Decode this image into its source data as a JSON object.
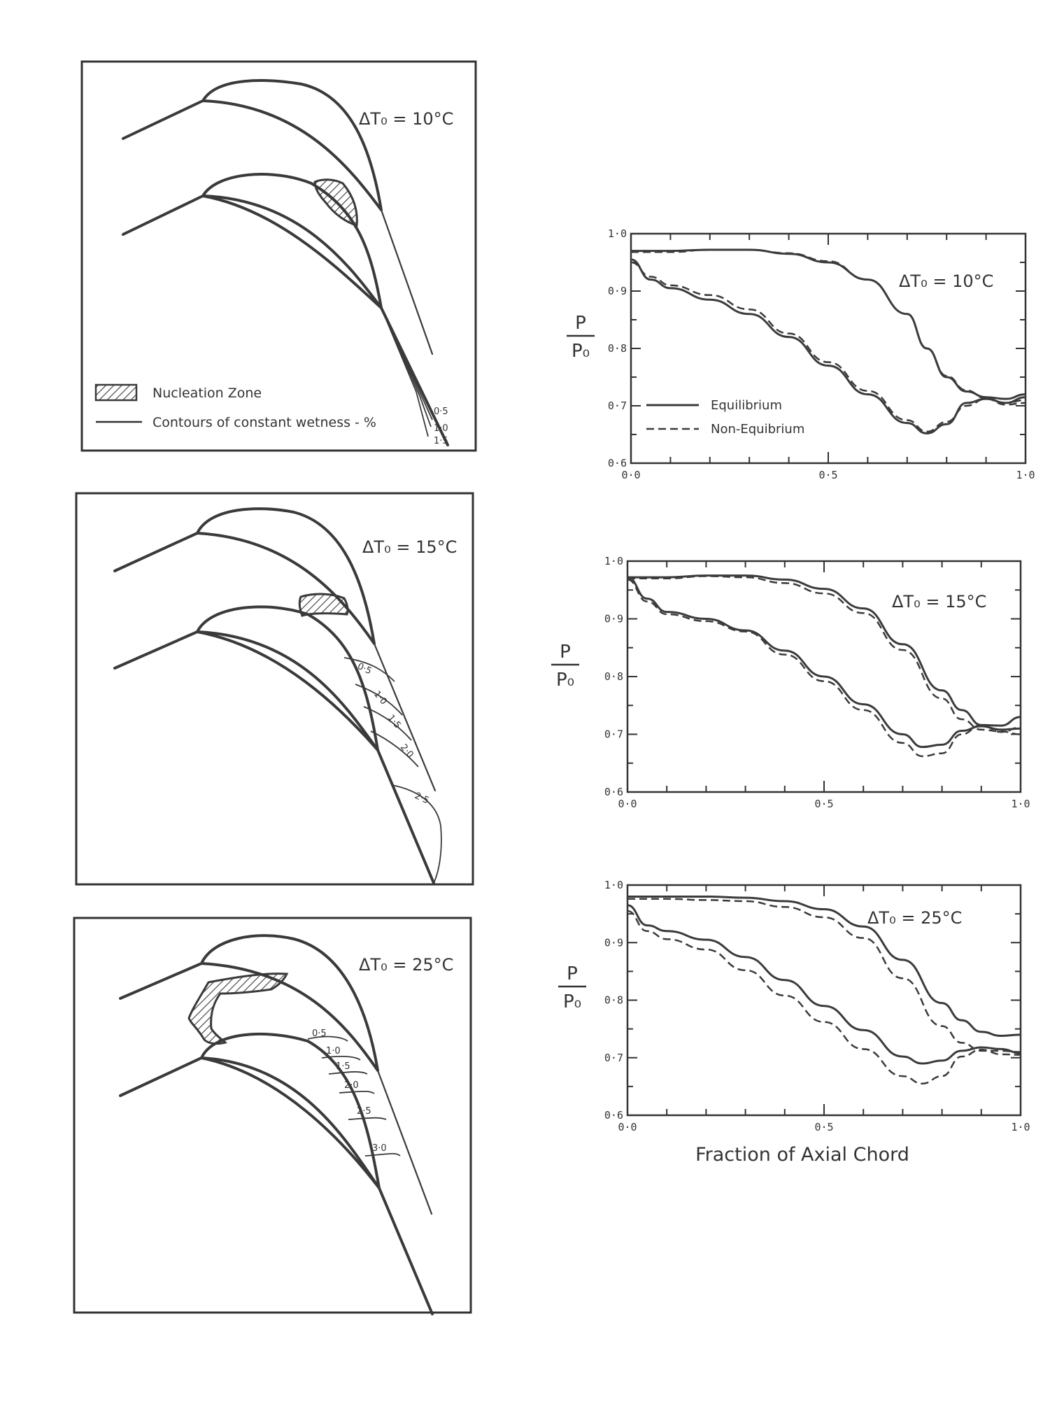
{
  "diagrams": {
    "legend": {
      "nucleation_label": "Nucleation Zone",
      "contour_label": "Contours of constant wetness - %"
    },
    "panel1": {
      "title": "ΔT₀ = 10°C",
      "contours": [
        "0·5",
        "1·0",
        "1·5"
      ]
    },
    "panel2": {
      "title": "ΔT₀ = 15°C",
      "contours": [
        "0·5",
        "1·0",
        "1·5",
        "2·0",
        "2·5"
      ]
    },
    "panel3": {
      "title": "ΔT₀ = 25°C",
      "contours": [
        "0·5",
        "1·0",
        "1·5",
        "2·0",
        "2·5",
        "3·0"
      ]
    }
  },
  "y_label_num": "P",
  "y_label_den": "P₀",
  "x_label": "Fraction of Axial Chord",
  "x_ticks": [
    "0·0",
    "0·5",
    "1·0"
  ],
  "y_ticks": [
    "1·0",
    "0·9",
    "0·8",
    "0·7",
    "0·6"
  ],
  "chart_data": [
    {
      "type": "line",
      "title": "ΔT₀ = 10°C",
      "xlabel": "",
      "ylabel": "P/P₀",
      "xlim": [
        0,
        1
      ],
      "ylim": [
        0.6,
        1.0
      ],
      "legend": [
        "Equilibrium",
        "Non-Equibrium"
      ],
      "legend_position": "bottom-left",
      "series": [
        {
          "name": "Equilibrium",
          "style": "solid",
          "x": [
            0,
            0.1,
            0.2,
            0.3,
            0.4,
            0.5,
            0.6,
            0.7,
            0.75,
            0.8,
            0.85,
            0.9,
            0.95,
            1.0
          ],
          "y": [
            0.97,
            0.97,
            0.972,
            0.972,
            0.965,
            0.95,
            0.92,
            0.86,
            0.8,
            0.75,
            0.725,
            0.715,
            0.712,
            0.72
          ]
        },
        {
          "name": "Equilibrium",
          "style": "solid",
          "x": [
            0,
            0.05,
            0.1,
            0.2,
            0.3,
            0.4,
            0.5,
            0.6,
            0.7,
            0.75,
            0.8,
            0.85,
            0.9,
            0.95,
            1.0
          ],
          "y": [
            0.955,
            0.92,
            0.905,
            0.885,
            0.86,
            0.82,
            0.77,
            0.72,
            0.67,
            0.652,
            0.668,
            0.705,
            0.712,
            0.705,
            0.715
          ]
        },
        {
          "name": "Non-Equibrium",
          "style": "dashed",
          "x": [
            0,
            0.1,
            0.2,
            0.3,
            0.4,
            0.5,
            0.6,
            0.7,
            0.75,
            0.8,
            0.85,
            0.9,
            0.95,
            1.0
          ],
          "y": [
            0.968,
            0.968,
            0.972,
            0.972,
            0.966,
            0.952,
            0.92,
            0.86,
            0.8,
            0.752,
            0.727,
            0.713,
            0.705,
            0.71
          ]
        },
        {
          "name": "Non-Equibrium",
          "style": "dashed",
          "x": [
            0,
            0.05,
            0.1,
            0.2,
            0.3,
            0.4,
            0.5,
            0.6,
            0.7,
            0.75,
            0.8,
            0.85,
            0.9,
            0.95,
            1.0
          ],
          "y": [
            0.95,
            0.925,
            0.91,
            0.893,
            0.868,
            0.826,
            0.776,
            0.726,
            0.675,
            0.655,
            0.672,
            0.7,
            0.712,
            0.702,
            0.705
          ]
        }
      ]
    },
    {
      "type": "line",
      "title": "ΔT₀ = 15°C",
      "xlabel": "",
      "ylabel": "P/P₀",
      "xlim": [
        0,
        1
      ],
      "ylim": [
        0.6,
        1.0
      ],
      "series": [
        {
          "name": "Equilibrium",
          "style": "solid",
          "x": [
            0,
            0.1,
            0.2,
            0.3,
            0.4,
            0.5,
            0.6,
            0.7,
            0.8,
            0.85,
            0.9,
            0.95,
            1.0
          ],
          "y": [
            0.972,
            0.972,
            0.975,
            0.975,
            0.968,
            0.952,
            0.918,
            0.856,
            0.776,
            0.742,
            0.716,
            0.715,
            0.73
          ]
        },
        {
          "name": "Equilibrium",
          "style": "solid",
          "x": [
            0,
            0.05,
            0.1,
            0.2,
            0.3,
            0.4,
            0.5,
            0.6,
            0.7,
            0.75,
            0.8,
            0.85,
            0.9,
            0.95,
            1.0
          ],
          "y": [
            0.972,
            0.935,
            0.912,
            0.9,
            0.88,
            0.845,
            0.8,
            0.752,
            0.7,
            0.678,
            0.682,
            0.706,
            0.714,
            0.708,
            0.71
          ]
        },
        {
          "name": "Non-Equibrium",
          "style": "dashed",
          "x": [
            0,
            0.1,
            0.2,
            0.3,
            0.4,
            0.5,
            0.6,
            0.7,
            0.8,
            0.85,
            0.9,
            0.95,
            1.0
          ],
          "y": [
            0.97,
            0.97,
            0.974,
            0.972,
            0.962,
            0.944,
            0.91,
            0.846,
            0.762,
            0.726,
            0.708,
            0.705,
            0.7
          ]
        },
        {
          "name": "Non-Equibrium",
          "style": "dashed",
          "x": [
            0,
            0.05,
            0.1,
            0.2,
            0.3,
            0.4,
            0.5,
            0.6,
            0.7,
            0.75,
            0.8,
            0.85,
            0.9,
            0.95,
            1.0
          ],
          "y": [
            0.968,
            0.93,
            0.908,
            0.896,
            0.878,
            0.838,
            0.792,
            0.742,
            0.685,
            0.662,
            0.667,
            0.7,
            0.716,
            0.704,
            0.712
          ]
        }
      ]
    },
    {
      "type": "line",
      "title": "ΔT₀ = 25°C",
      "xlabel": "Fraction of Axial Chord",
      "ylabel": "P/P₀",
      "xlim": [
        0,
        1
      ],
      "ylim": [
        0.6,
        1.0
      ],
      "series": [
        {
          "name": "Equilibrium",
          "style": "solid",
          "x": [
            0,
            0.1,
            0.2,
            0.3,
            0.4,
            0.5,
            0.6,
            0.7,
            0.8,
            0.85,
            0.9,
            0.95,
            1.0
          ],
          "y": [
            0.98,
            0.98,
            0.98,
            0.978,
            0.972,
            0.958,
            0.928,
            0.87,
            0.795,
            0.765,
            0.745,
            0.738,
            0.74
          ]
        },
        {
          "name": "Equilibrium",
          "style": "solid",
          "x": [
            0,
            0.05,
            0.1,
            0.2,
            0.3,
            0.4,
            0.5,
            0.6,
            0.7,
            0.75,
            0.8,
            0.85,
            0.9,
            0.95,
            1.0
          ],
          "y": [
            0.965,
            0.93,
            0.92,
            0.905,
            0.875,
            0.835,
            0.79,
            0.748,
            0.702,
            0.69,
            0.695,
            0.712,
            0.718,
            0.715,
            0.708
          ]
        },
        {
          "name": "Non-Equibrium",
          "style": "dashed",
          "x": [
            0,
            0.1,
            0.2,
            0.3,
            0.4,
            0.5,
            0.6,
            0.7,
            0.8,
            0.85,
            0.9,
            0.95,
            1.0
          ],
          "y": [
            0.976,
            0.976,
            0.974,
            0.972,
            0.962,
            0.944,
            0.908,
            0.838,
            0.755,
            0.726,
            0.712,
            0.712,
            0.71
          ]
        },
        {
          "name": "Non-Equibrium",
          "style": "dashed",
          "x": [
            0,
            0.05,
            0.1,
            0.2,
            0.3,
            0.4,
            0.5,
            0.6,
            0.7,
            0.75,
            0.8,
            0.85,
            0.9,
            0.95,
            1.0
          ],
          "y": [
            0.955,
            0.92,
            0.906,
            0.888,
            0.852,
            0.808,
            0.762,
            0.715,
            0.668,
            0.655,
            0.668,
            0.702,
            0.714,
            0.706,
            0.705
          ]
        }
      ]
    }
  ]
}
